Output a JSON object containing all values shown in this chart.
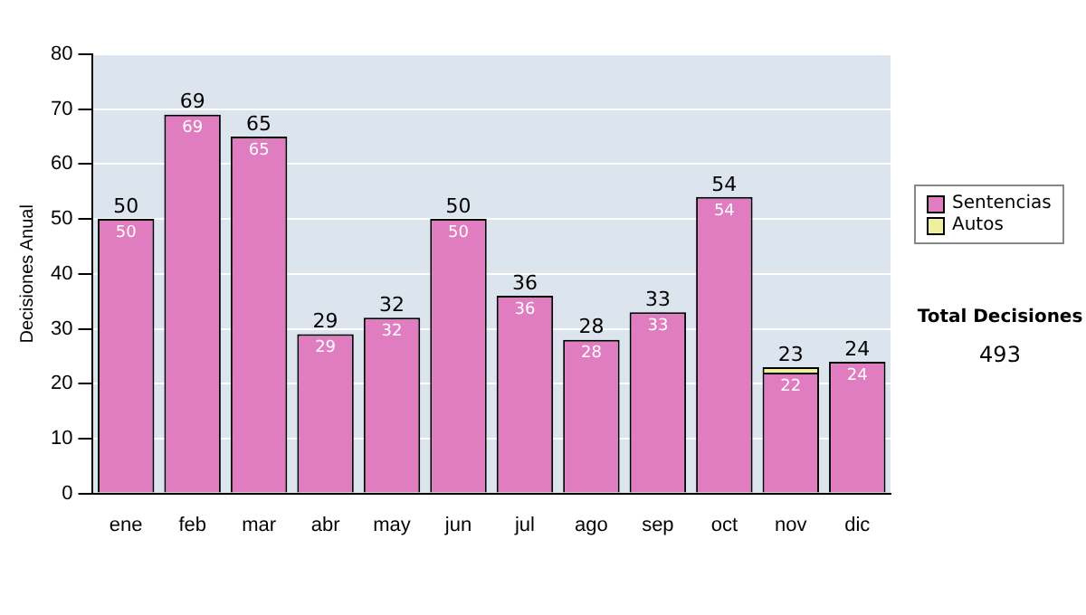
{
  "chart_data": {
    "type": "bar",
    "stacked": true,
    "ylabel": "Decisiones Anual",
    "categories": [
      "ene",
      "feb",
      "mar",
      "abr",
      "may",
      "jun",
      "jul",
      "ago",
      "sep",
      "oct",
      "nov",
      "dic"
    ],
    "series": [
      {
        "name": "Sentencias",
        "color": "#e07cc0",
        "values": [
          50,
          69,
          65,
          29,
          32,
          50,
          36,
          28,
          33,
          54,
          22,
          24
        ],
        "value_labels": [
          "50",
          "69",
          "65",
          "29",
          "32",
          "50",
          "36",
          "28",
          "33",
          "54",
          "22",
          "24"
        ]
      },
      {
        "name": "Autos",
        "color": "#eef0a0",
        "values": [
          0,
          0,
          0,
          0,
          0,
          0,
          0,
          0,
          0,
          0,
          1,
          0
        ]
      }
    ],
    "totals": [
      "50",
      "69",
      "65",
      "29",
      "32",
      "50",
      "36",
      "28",
      "33",
      "54",
      "23",
      "24"
    ],
    "ylim": [
      0,
      80
    ],
    "yticks": [
      0,
      10,
      20,
      30,
      40,
      50,
      60,
      70,
      80
    ],
    "grid": "y",
    "legend": "right",
    "annotations": [
      "Total Decisiones",
      "493"
    ]
  }
}
